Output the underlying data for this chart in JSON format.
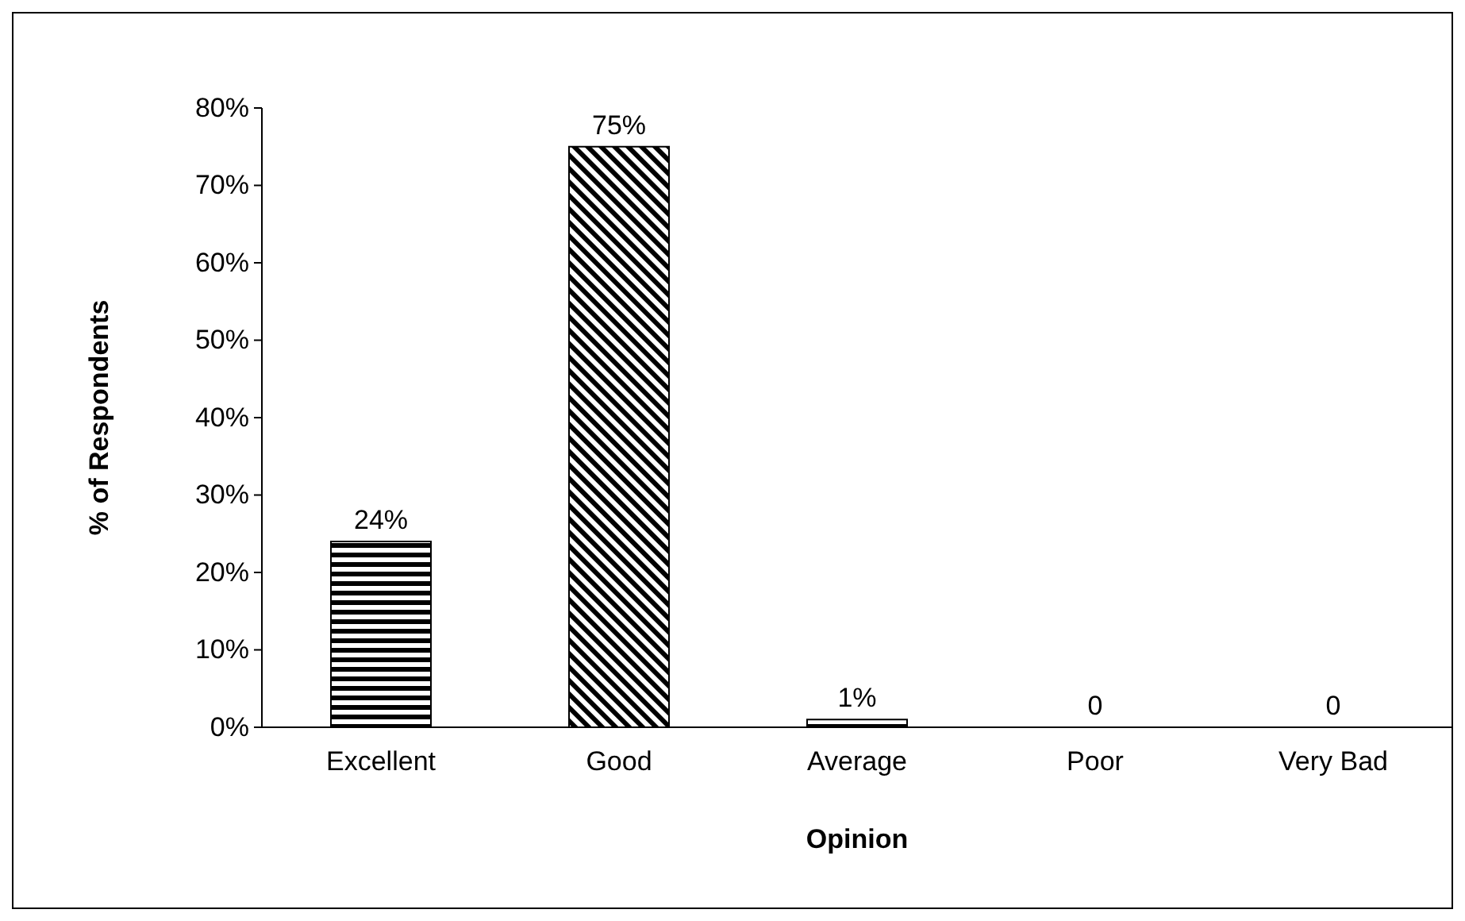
{
  "chart_data": {
    "type": "bar",
    "xlabel": "Opinion",
    "ylabel": "% of Respondents",
    "categories": [
      "Excellent",
      "Good",
      "Average",
      "Poor",
      "Very Bad"
    ],
    "values": [
      24,
      75,
      1,
      0,
      0
    ],
    "value_labels": [
      "24%",
      "75%",
      "1%",
      "0",
      "0"
    ],
    "color": "#000000",
    "ylim": [
      0,
      80
    ],
    "yticks": [
      {
        "value": 0,
        "label": "0%"
      },
      {
        "value": 10,
        "label": "10%"
      },
      {
        "value": 20,
        "label": "20%"
      },
      {
        "value": 30,
        "label": "30%"
      },
      {
        "value": 40,
        "label": "40%"
      },
      {
        "value": 50,
        "label": "50%"
      },
      {
        "value": 60,
        "label": "60%"
      },
      {
        "value": 70,
        "label": "70%"
      },
      {
        "value": 80,
        "label": "80%"
      }
    ],
    "grid": false
  }
}
